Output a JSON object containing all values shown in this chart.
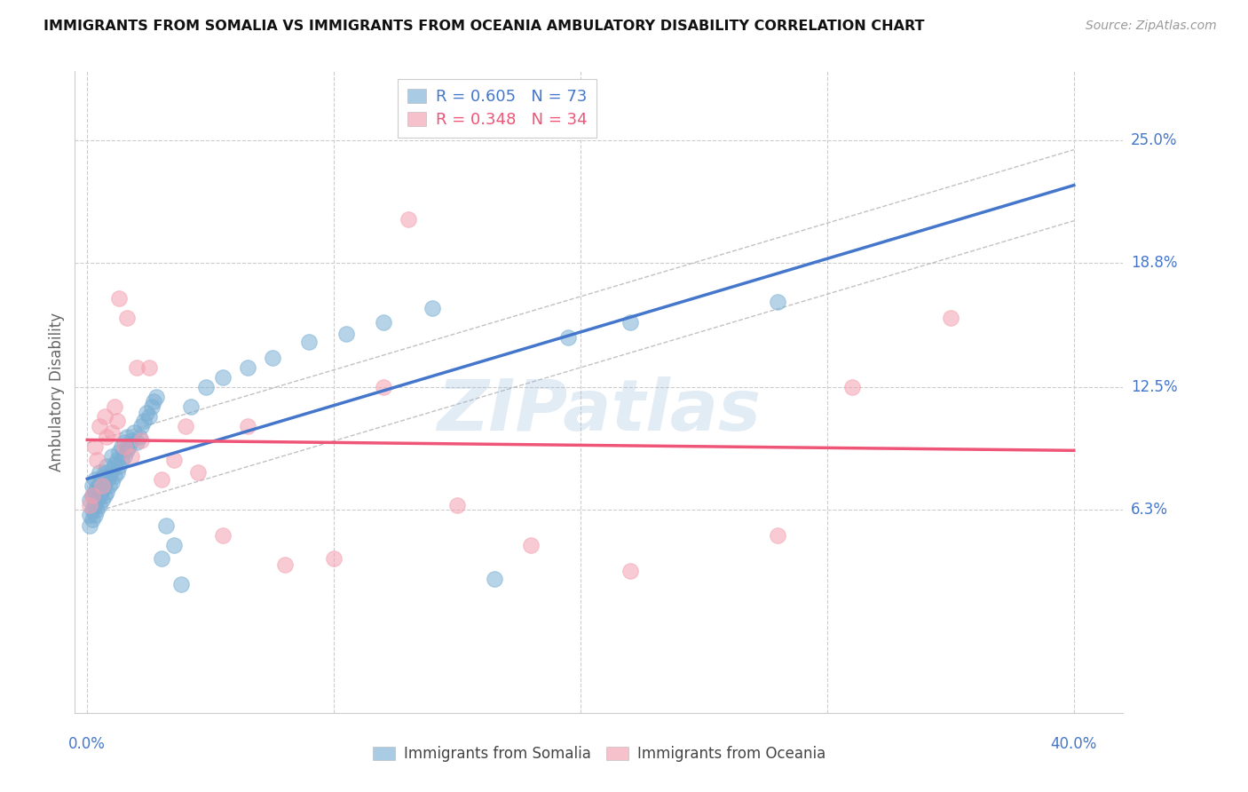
{
  "title": "IMMIGRANTS FROM SOMALIA VS IMMIGRANTS FROM OCEANIA AMBULATORY DISABILITY CORRELATION CHART",
  "source": "Source: ZipAtlas.com",
  "ylabel": "Ambulatory Disability",
  "ytick_labels": [
    "25.0%",
    "18.8%",
    "12.5%",
    "6.3%"
  ],
  "ytick_values": [
    0.25,
    0.188,
    0.125,
    0.063
  ],
  "xtick_labels": [
    "0.0%",
    "40.0%"
  ],
  "xlim": [
    -0.005,
    0.42
  ],
  "ylim": [
    -0.04,
    0.285
  ],
  "somalia_color": "#7BAFD4",
  "oceania_color": "#F4A0B0",
  "somalia_R": 0.605,
  "somalia_N": 73,
  "oceania_R": 0.348,
  "oceania_N": 34,
  "somalia_x": [
    0.001,
    0.001,
    0.001,
    0.002,
    0.002,
    0.002,
    0.002,
    0.003,
    0.003,
    0.003,
    0.003,
    0.004,
    0.004,
    0.004,
    0.005,
    0.005,
    0.005,
    0.005,
    0.006,
    0.006,
    0.006,
    0.007,
    0.007,
    0.007,
    0.008,
    0.008,
    0.008,
    0.009,
    0.009,
    0.01,
    0.01,
    0.01,
    0.011,
    0.011,
    0.012,
    0.012,
    0.013,
    0.013,
    0.014,
    0.014,
    0.015,
    0.015,
    0.016,
    0.016,
    0.017,
    0.018,
    0.019,
    0.02,
    0.021,
    0.022,
    0.023,
    0.024,
    0.025,
    0.026,
    0.027,
    0.028,
    0.03,
    0.032,
    0.035,
    0.038,
    0.042,
    0.048,
    0.055,
    0.065,
    0.075,
    0.09,
    0.105,
    0.12,
    0.14,
    0.165,
    0.195,
    0.22,
    0.28
  ],
  "somalia_y": [
    0.055,
    0.06,
    0.068,
    0.058,
    0.063,
    0.07,
    0.075,
    0.06,
    0.065,
    0.072,
    0.078,
    0.063,
    0.068,
    0.074,
    0.065,
    0.07,
    0.076,
    0.082,
    0.068,
    0.073,
    0.079,
    0.07,
    0.076,
    0.082,
    0.072,
    0.078,
    0.085,
    0.075,
    0.08,
    0.077,
    0.083,
    0.09,
    0.08,
    0.086,
    0.082,
    0.088,
    0.085,
    0.092,
    0.088,
    0.095,
    0.09,
    0.097,
    0.093,
    0.1,
    0.095,
    0.098,
    0.102,
    0.097,
    0.1,
    0.105,
    0.108,
    0.112,
    0.11,
    0.115,
    0.118,
    0.12,
    0.038,
    0.055,
    0.045,
    0.025,
    0.115,
    0.125,
    0.13,
    0.135,
    0.14,
    0.148,
    0.152,
    0.158,
    0.165,
    0.028,
    0.15,
    0.158,
    0.168
  ],
  "oceania_x": [
    0.001,
    0.002,
    0.003,
    0.004,
    0.005,
    0.006,
    0.007,
    0.008,
    0.01,
    0.011,
    0.012,
    0.013,
    0.015,
    0.016,
    0.018,
    0.02,
    0.022,
    0.025,
    0.03,
    0.035,
    0.04,
    0.045,
    0.055,
    0.065,
    0.08,
    0.1,
    0.12,
    0.13,
    0.15,
    0.18,
    0.22,
    0.28,
    0.31,
    0.35
  ],
  "oceania_y": [
    0.065,
    0.07,
    0.095,
    0.088,
    0.105,
    0.075,
    0.11,
    0.1,
    0.102,
    0.115,
    0.108,
    0.17,
    0.095,
    0.16,
    0.09,
    0.135,
    0.098,
    0.135,
    0.078,
    0.088,
    0.105,
    0.082,
    0.05,
    0.105,
    0.035,
    0.038,
    0.125,
    0.21,
    0.065,
    0.045,
    0.032,
    0.05,
    0.125,
    0.16
  ],
  "watermark": "ZIPatlas",
  "background_color": "#FFFFFF",
  "grid_color": "#CCCCCC",
  "trend_color_somalia": "#4477CC",
  "trend_color_oceania": "#EE5577",
  "conf_band_color": "#BBBBBB"
}
